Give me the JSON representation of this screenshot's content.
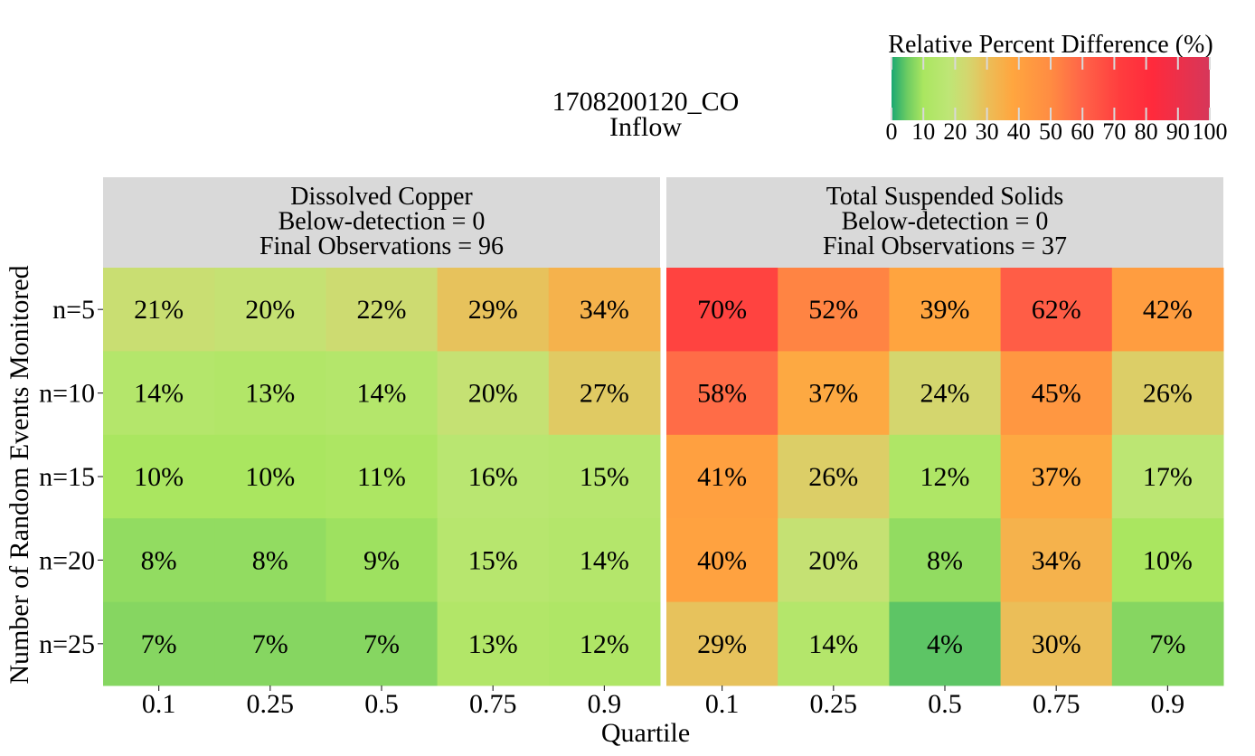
{
  "title": [
    "1708200120_CO",
    "Inflow"
  ],
  "legend": {
    "title": "Relative Percent Difference (%)",
    "ticks": [
      0,
      10,
      20,
      30,
      40,
      50,
      60,
      70,
      80,
      90,
      100
    ],
    "position": "top-right",
    "colors": [
      "#1aa872",
      "#b4e860",
      "#ffa53f",
      "#ff2d3c",
      "#d8355a"
    ]
  },
  "chart_data": {
    "type": "heatmap",
    "xlabel": "Quartile",
    "ylabel": "Number of Random Events Monitored",
    "x_categories": [
      "0.1",
      "0.25",
      "0.5",
      "0.75",
      "0.9"
    ],
    "y_categories": [
      "n=5",
      "n=10",
      "n=15",
      "n=20",
      "n=25"
    ],
    "value_range": [
      0,
      100
    ],
    "panels": [
      {
        "header": [
          "Dissolved Copper",
          "Below-detection = 0",
          "Final Observations = 96"
        ],
        "values": [
          [
            21,
            20,
            22,
            29,
            34
          ],
          [
            14,
            13,
            14,
            20,
            27
          ],
          [
            10,
            10,
            11,
            16,
            15
          ],
          [
            8,
            8,
            9,
            15,
            14
          ],
          [
            7,
            7,
            7,
            13,
            12
          ]
        ]
      },
      {
        "header": [
          "Total Suspended Solids",
          "Below-detection = 0",
          "Final Observations = 37"
        ],
        "values": [
          [
            70,
            52,
            39,
            62,
            42
          ],
          [
            58,
            37,
            24,
            45,
            26
          ],
          [
            41,
            26,
            12,
            37,
            17
          ],
          [
            40,
            20,
            8,
            34,
            10
          ],
          [
            29,
            14,
            4,
            30,
            7
          ]
        ]
      }
    ]
  }
}
